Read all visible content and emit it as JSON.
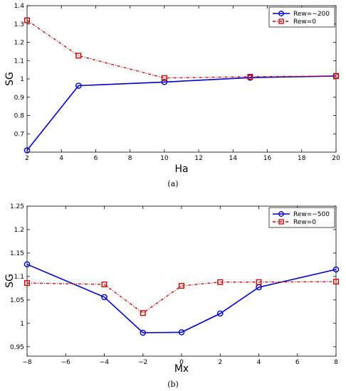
{
  "chart_data": [
    {
      "type": "line",
      "caption": "(a)",
      "xlabel": "Ha",
      "ylabel": "SG",
      "xlim": [
        2,
        20
      ],
      "ylim": [
        0.6,
        1.4
      ],
      "xticks": [
        2,
        4,
        6,
        8,
        10,
        12,
        14,
        16,
        18,
        20
      ],
      "yticks": [
        0.7,
        0.8,
        0.9,
        1.0,
        1.1,
        1.2,
        1.3,
        1.4
      ],
      "ytick_labels": [
        "0.7",
        "0.8",
        "0.9",
        "1",
        "1.1",
        "1.2",
        "1.3",
        "1.4"
      ],
      "grid": false,
      "legend_position": "top-right",
      "series": [
        {
          "name": "Rew=−200",
          "color": "#0000cc",
          "line_style": "solid",
          "marker": "circle",
          "x": [
            2,
            5,
            10,
            15,
            20
          ],
          "y": [
            0.61,
            0.963,
            0.983,
            1.007,
            1.016
          ]
        },
        {
          "name": "Rew=0",
          "color": "#cc0000",
          "line_style": "dash-dot",
          "marker": "square",
          "x": [
            2,
            5,
            10,
            15,
            20
          ],
          "y": [
            1.32,
            1.127,
            1.005,
            1.012,
            1.016
          ]
        }
      ]
    },
    {
      "type": "line",
      "caption": "(b)",
      "xlabel": "Mx",
      "ylabel": "SG",
      "xlim": [
        -8,
        8
      ],
      "ylim": [
        0.93,
        1.25
      ],
      "xticks": [
        -8,
        -6,
        -4,
        -2,
        0,
        2,
        4,
        6,
        8
      ],
      "xtick_labels": [
        "−8",
        "−6",
        "−4",
        "−2",
        "0",
        "2",
        "4",
        "6",
        "8"
      ],
      "yticks": [
        0.95,
        1.0,
        1.05,
        1.1,
        1.15,
        1.2,
        1.25
      ],
      "ytick_labels": [
        "0.95",
        "1",
        "1.05",
        "1.1",
        "1.15",
        "1.2",
        "1.25"
      ],
      "grid": false,
      "legend_position": "top-right",
      "series": [
        {
          "name": "Rew=−500",
          "color": "#0000cc",
          "line_style": "solid",
          "marker": "circle",
          "x": [
            -8,
            -4,
            -2,
            0,
            2,
            4,
            8
          ],
          "y": [
            1.126,
            1.056,
            0.98,
            0.981,
            1.021,
            1.077,
            1.115
          ]
        },
        {
          "name": "Rew=0",
          "color": "#cc0000",
          "line_style": "dash-dot",
          "marker": "square",
          "x": [
            -8,
            -4,
            -2,
            0,
            2,
            4,
            8
          ],
          "y": [
            1.086,
            1.083,
            1.022,
            1.08,
            1.088,
            1.088,
            1.089
          ]
        }
      ]
    }
  ]
}
